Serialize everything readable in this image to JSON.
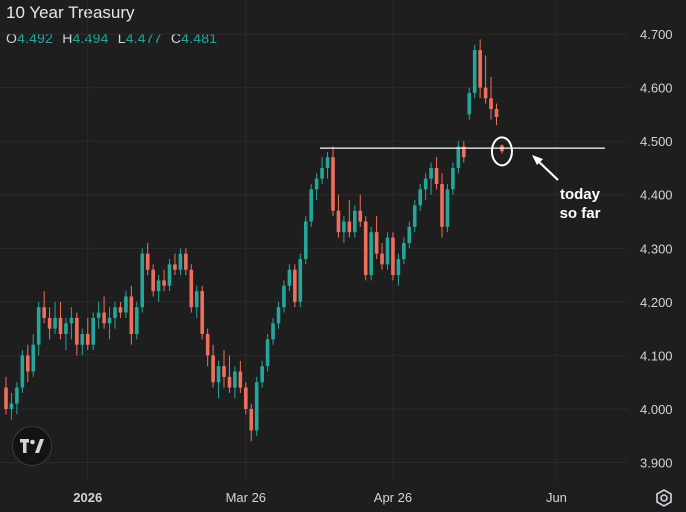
{
  "title": "10 Year Treasury",
  "ohlc": {
    "o_label": "O",
    "o": "4.492",
    "h_label": "H",
    "h": "4.494",
    "l_label": "L",
    "l": "4.477",
    "c_label": "C",
    "c": "4.481"
  },
  "annotation": {
    "line1": "today",
    "line2": "so far"
  },
  "colors": {
    "background": "#1e1e1e",
    "up": "#26a69a",
    "down": "#ef6f5c",
    "grid": "#2a2a2a",
    "text": "#d1d4dc",
    "annotation": "#ffffff"
  },
  "icons": {
    "logo": "tradingview-logo-icon",
    "settings": "gear-icon"
  },
  "chart_data": {
    "type": "candlestick",
    "title": "10 Year Treasury",
    "ylim": [
      3.88,
      4.73
    ],
    "y_ticks": [
      "4.700",
      "4.600",
      "4.500",
      "4.400",
      "4.300",
      "4.200",
      "4.100",
      "4.000",
      "3.900"
    ],
    "x_ticks": [
      {
        "label": "2026",
        "index": 15
      },
      {
        "label": "Mar 26",
        "index": 44
      },
      {
        "label": "Apr 26",
        "index": 71
      },
      {
        "label": "Jun",
        "index": 101
      }
    ],
    "horizontal_line": 4.487,
    "candles": [
      [
        4.04,
        4.06,
        3.99,
        4.0
      ],
      [
        4.0,
        4.03,
        3.98,
        4.01
      ],
      [
        4.01,
        4.05,
        3.99,
        4.04
      ],
      [
        4.04,
        4.11,
        4.03,
        4.1
      ],
      [
        4.1,
        4.12,
        4.05,
        4.07
      ],
      [
        4.07,
        4.14,
        4.06,
        4.12
      ],
      [
        4.12,
        4.2,
        4.1,
        4.19
      ],
      [
        4.19,
        4.22,
        4.16,
        4.17
      ],
      [
        4.17,
        4.19,
        4.13,
        4.15
      ],
      [
        4.15,
        4.2,
        4.14,
        4.17
      ],
      [
        4.17,
        4.2,
        4.13,
        4.14
      ],
      [
        4.14,
        4.17,
        4.11,
        4.16
      ],
      [
        4.16,
        4.19,
        4.13,
        4.17
      ],
      [
        4.17,
        4.18,
        4.1,
        4.12
      ],
      [
        4.12,
        4.15,
        4.1,
        4.14
      ],
      [
        4.14,
        4.17,
        4.11,
        4.12
      ],
      [
        4.12,
        4.18,
        4.11,
        4.17
      ],
      [
        4.17,
        4.2,
        4.15,
        4.18
      ],
      [
        4.18,
        4.21,
        4.15,
        4.16
      ],
      [
        4.16,
        4.19,
        4.13,
        4.17
      ],
      [
        4.17,
        4.2,
        4.15,
        4.19
      ],
      [
        4.19,
        4.2,
        4.17,
        4.18
      ],
      [
        4.18,
        4.22,
        4.17,
        4.21
      ],
      [
        4.21,
        4.23,
        4.12,
        4.14
      ],
      [
        4.14,
        4.2,
        4.13,
        4.19
      ],
      [
        4.19,
        4.3,
        4.18,
        4.29
      ],
      [
        4.29,
        4.31,
        4.25,
        4.26
      ],
      [
        4.26,
        4.27,
        4.21,
        4.22
      ],
      [
        4.22,
        4.25,
        4.2,
        4.24
      ],
      [
        4.24,
        4.26,
        4.22,
        4.23
      ],
      [
        4.23,
        4.28,
        4.22,
        4.27
      ],
      [
        4.27,
        4.29,
        4.25,
        4.26
      ],
      [
        4.26,
        4.3,
        4.25,
        4.29
      ],
      [
        4.29,
        4.3,
        4.25,
        4.26
      ],
      [
        4.26,
        4.27,
        4.18,
        4.19
      ],
      [
        4.19,
        4.23,
        4.17,
        4.22
      ],
      [
        4.22,
        4.23,
        4.13,
        4.14
      ],
      [
        4.14,
        4.15,
        4.08,
        4.1
      ],
      [
        4.1,
        4.12,
        4.04,
        4.05
      ],
      [
        4.05,
        4.09,
        4.02,
        4.08
      ],
      [
        4.08,
        4.11,
        4.04,
        4.06
      ],
      [
        4.06,
        4.1,
        4.03,
        4.04
      ],
      [
        4.04,
        4.08,
        4.02,
        4.07
      ],
      [
        4.07,
        4.09,
        4.03,
        4.04
      ],
      [
        4.04,
        4.05,
        3.99,
        4.0
      ],
      [
        4.0,
        4.01,
        3.94,
        3.96
      ],
      [
        3.96,
        4.06,
        3.95,
        4.05
      ],
      [
        4.05,
        4.09,
        4.04,
        4.08
      ],
      [
        4.08,
        4.14,
        4.07,
        4.13
      ],
      [
        4.13,
        4.17,
        4.12,
        4.16
      ],
      [
        4.16,
        4.2,
        4.15,
        4.19
      ],
      [
        4.19,
        4.24,
        4.18,
        4.23
      ],
      [
        4.23,
        4.27,
        4.22,
        4.26
      ],
      [
        4.26,
        4.27,
        4.19,
        4.2
      ],
      [
        4.2,
        4.29,
        4.19,
        4.28
      ],
      [
        4.28,
        4.36,
        4.27,
        4.35
      ],
      [
        4.35,
        4.42,
        4.34,
        4.41
      ],
      [
        4.41,
        4.44,
        4.39,
        4.43
      ],
      [
        4.43,
        4.47,
        4.42,
        4.45
      ],
      [
        4.45,
        4.48,
        4.43,
        4.47
      ],
      [
        4.47,
        4.49,
        4.36,
        4.37
      ],
      [
        4.37,
        4.4,
        4.32,
        4.33
      ],
      [
        4.33,
        4.36,
        4.31,
        4.35
      ],
      [
        4.35,
        4.39,
        4.32,
        4.33
      ],
      [
        4.33,
        4.38,
        4.32,
        4.37
      ],
      [
        4.37,
        4.4,
        4.34,
        4.35
      ],
      [
        4.35,
        4.36,
        4.24,
        4.25
      ],
      [
        4.25,
        4.34,
        4.24,
        4.33
      ],
      [
        4.33,
        4.36,
        4.28,
        4.29
      ],
      [
        4.29,
        4.31,
        4.26,
        4.27
      ],
      [
        4.27,
        4.33,
        4.26,
        4.32
      ],
      [
        4.32,
        4.33,
        4.24,
        4.25
      ],
      [
        4.25,
        4.29,
        4.23,
        4.28
      ],
      [
        4.28,
        4.32,
        4.27,
        4.31
      ],
      [
        4.31,
        4.35,
        4.3,
        4.34
      ],
      [
        4.34,
        4.39,
        4.33,
        4.38
      ],
      [
        4.38,
        4.42,
        4.37,
        4.41
      ],
      [
        4.41,
        4.44,
        4.39,
        4.43
      ],
      [
        4.43,
        4.46,
        4.4,
        4.45
      ],
      [
        4.45,
        4.47,
        4.41,
        4.42
      ],
      [
        4.42,
        4.44,
        4.32,
        4.34
      ],
      [
        4.34,
        4.42,
        4.33,
        4.41
      ],
      [
        4.41,
        4.46,
        4.4,
        4.45
      ],
      [
        4.45,
        4.5,
        4.44,
        4.49
      ],
      [
        4.49,
        4.5,
        4.46,
        4.47
      ],
      [
        4.55,
        4.6,
        4.54,
        4.59
      ],
      [
        4.59,
        4.68,
        4.58,
        4.67
      ],
      [
        4.67,
        4.69,
        4.58,
        4.6
      ],
      [
        4.6,
        4.66,
        4.57,
        4.58
      ],
      [
        4.58,
        4.62,
        4.54,
        4.56
      ],
      [
        4.56,
        4.57,
        4.53,
        4.545
      ],
      [
        4.492,
        4.494,
        4.477,
        4.481
      ]
    ]
  }
}
